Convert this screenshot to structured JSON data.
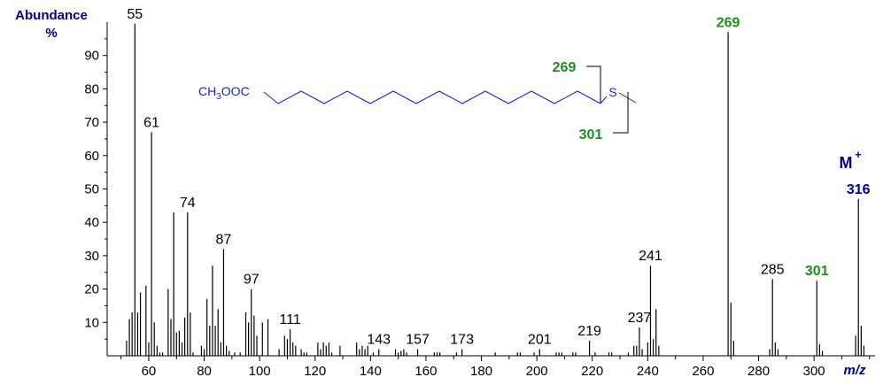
{
  "chart_data": {
    "type": "bar",
    "ylabel": [
      "Abundance",
      "%"
    ],
    "xlabel": "m/z",
    "xlim": [
      45,
      322
    ],
    "ylim": [
      0,
      100
    ],
    "x_ticks": [
      60,
      80,
      100,
      120,
      140,
      160,
      180,
      200,
      220,
      240,
      260,
      280,
      300
    ],
    "y_ticks": [
      10,
      20,
      30,
      40,
      50,
      60,
      70,
      80,
      90
    ],
    "peaks": [
      {
        "x": 52,
        "y": 4.5
      },
      {
        "x": 53,
        "y": 11
      },
      {
        "x": 54,
        "y": 13
      },
      {
        "x": 55,
        "y": 99.5
      },
      {
        "x": 56,
        "y": 13
      },
      {
        "x": 57,
        "y": 19
      },
      {
        "x": 59,
        "y": 21
      },
      {
        "x": 60,
        "y": 4
      },
      {
        "x": 61,
        "y": 67
      },
      {
        "x": 62,
        "y": 10
      },
      {
        "x": 63,
        "y": 3
      },
      {
        "x": 64,
        "y": 1
      },
      {
        "x": 65,
        "y": 1
      },
      {
        "x": 67,
        "y": 20
      },
      {
        "x": 68,
        "y": 11
      },
      {
        "x": 69,
        "y": 43
      },
      {
        "x": 70,
        "y": 7
      },
      {
        "x": 71,
        "y": 7.5
      },
      {
        "x": 72,
        "y": 4
      },
      {
        "x": 73,
        "y": 11.5
      },
      {
        "x": 74,
        "y": 43
      },
      {
        "x": 75,
        "y": 13
      },
      {
        "x": 76,
        "y": 1
      },
      {
        "x": 79,
        "y": 3
      },
      {
        "x": 80,
        "y": 2
      },
      {
        "x": 81,
        "y": 17
      },
      {
        "x": 82,
        "y": 9
      },
      {
        "x": 83,
        "y": 27
      },
      {
        "x": 84,
        "y": 9
      },
      {
        "x": 85,
        "y": 14
      },
      {
        "x": 86,
        "y": 4
      },
      {
        "x": 87,
        "y": 32
      },
      {
        "x": 88,
        "y": 3
      },
      {
        "x": 89,
        "y": 1.5
      },
      {
        "x": 91,
        "y": 1
      },
      {
        "x": 93,
        "y": 1
      },
      {
        "x": 95,
        "y": 13
      },
      {
        "x": 96,
        "y": 10
      },
      {
        "x": 97,
        "y": 20
      },
      {
        "x": 98,
        "y": 12
      },
      {
        "x": 99,
        "y": 6
      },
      {
        "x": 101,
        "y": 10
      },
      {
        "x": 103,
        "y": 11
      },
      {
        "x": 107,
        "y": 2
      },
      {
        "x": 109,
        "y": 6
      },
      {
        "x": 110,
        "y": 5
      },
      {
        "x": 111,
        "y": 8
      },
      {
        "x": 112,
        "y": 4
      },
      {
        "x": 113,
        "y": 3
      },
      {
        "x": 115,
        "y": 2
      },
      {
        "x": 116,
        "y": 1
      },
      {
        "x": 117,
        "y": 1
      },
      {
        "x": 121,
        "y": 4
      },
      {
        "x": 122,
        "y": 2
      },
      {
        "x": 123,
        "y": 4
      },
      {
        "x": 124,
        "y": 3
      },
      {
        "x": 125,
        "y": 4
      },
      {
        "x": 126,
        "y": 1
      },
      {
        "x": 129,
        "y": 3
      },
      {
        "x": 135,
        "y": 4
      },
      {
        "x": 136,
        "y": 2
      },
      {
        "x": 137,
        "y": 3
      },
      {
        "x": 138,
        "y": 2
      },
      {
        "x": 139,
        "y": 3
      },
      {
        "x": 141,
        "y": 1
      },
      {
        "x": 143,
        "y": 2
      },
      {
        "x": 149,
        "y": 2
      },
      {
        "x": 150,
        "y": 1
      },
      {
        "x": 151,
        "y": 1.5
      },
      {
        "x": 152,
        "y": 2
      },
      {
        "x": 153,
        "y": 1
      },
      {
        "x": 157,
        "y": 2
      },
      {
        "x": 163,
        "y": 1
      },
      {
        "x": 164,
        "y": 1
      },
      {
        "x": 165,
        "y": 1
      },
      {
        "x": 171,
        "y": 1
      },
      {
        "x": 173,
        "y": 2
      },
      {
        "x": 185,
        "y": 1
      },
      {
        "x": 193,
        "y": 1
      },
      {
        "x": 194,
        "y": 1
      },
      {
        "x": 199,
        "y": 1
      },
      {
        "x": 201,
        "y": 2
      },
      {
        "x": 207,
        "y": 1
      },
      {
        "x": 208,
        "y": 1
      },
      {
        "x": 209,
        "y": 1
      },
      {
        "x": 213,
        "y": 1
      },
      {
        "x": 214,
        "y": 1
      },
      {
        "x": 219,
        "y": 4.5
      },
      {
        "x": 221,
        "y": 1
      },
      {
        "x": 226,
        "y": 1
      },
      {
        "x": 227,
        "y": 1
      },
      {
        "x": 233,
        "y": 1
      },
      {
        "x": 235,
        "y": 3
      },
      {
        "x": 236,
        "y": 3
      },
      {
        "x": 237,
        "y": 8.5
      },
      {
        "x": 238,
        "y": 2
      },
      {
        "x": 240,
        "y": 4
      },
      {
        "x": 241,
        "y": 27
      },
      {
        "x": 242,
        "y": 5
      },
      {
        "x": 243,
        "y": 14
      },
      {
        "x": 244,
        "y": 3
      },
      {
        "x": 269,
        "y": 97
      },
      {
        "x": 270,
        "y": 16
      },
      {
        "x": 271,
        "y": 4.5
      },
      {
        "x": 284,
        "y": 2
      },
      {
        "x": 285,
        "y": 23
      },
      {
        "x": 286,
        "y": 4
      },
      {
        "x": 287,
        "y": 2
      },
      {
        "x": 301,
        "y": 22.5
      },
      {
        "x": 302,
        "y": 3.5
      },
      {
        "x": 303,
        "y": 1.5
      },
      {
        "x": 315,
        "y": 6
      },
      {
        "x": 316,
        "y": 47
      },
      {
        "x": 317,
        "y": 9
      },
      {
        "x": 318,
        "y": 3
      }
    ],
    "peak_labels": [
      {
        "x": 55,
        "text": "55",
        "color": "#000000",
        "bold": false
      },
      {
        "x": 61,
        "text": "61",
        "color": "#000000",
        "bold": false
      },
      {
        "x": 74,
        "text": "74",
        "color": "#000000",
        "bold": false
      },
      {
        "x": 87,
        "text": "87",
        "color": "#000000",
        "bold": false
      },
      {
        "x": 97,
        "text": "97",
        "color": "#000000",
        "bold": false
      },
      {
        "x": 111,
        "text": "111",
        "color": "#000000",
        "bold": false
      },
      {
        "x": 143,
        "text": "143",
        "color": "#000000",
        "bold": false
      },
      {
        "x": 157,
        "text": "157",
        "color": "#000000",
        "bold": false
      },
      {
        "x": 173,
        "text": "173",
        "color": "#000000",
        "bold": false
      },
      {
        "x": 201,
        "text": "201",
        "color": "#000000",
        "bold": false
      },
      {
        "x": 219,
        "text": "219",
        "color": "#000000",
        "bold": false
      },
      {
        "x": 237,
        "text": "237",
        "color": "#000000",
        "bold": false
      },
      {
        "x": 241,
        "text": "241",
        "color": "#000000",
        "bold": false
      },
      {
        "x": 269,
        "text": "269",
        "color": "#228b22",
        "bold": true
      },
      {
        "x": 285,
        "text": "285",
        "color": "#000000",
        "bold": false
      },
      {
        "x": 301,
        "text": "301",
        "color": "#228b22",
        "bold": true
      },
      {
        "x": 316,
        "text": "316",
        "color": "#00008b",
        "bold": true
      }
    ],
    "molecular_ion": {
      "label": "M",
      "charge": "+",
      "x": 316
    },
    "structure": {
      "ester_group": "CH3OOC",
      "sulfur": "S",
      "fragment_upper": "269",
      "fragment_lower": "301"
    },
    "colors": {
      "axis": "#000000",
      "axis_title": "#00008b",
      "fragment": "#228b22",
      "molecule": "#1e1ec8"
    }
  }
}
